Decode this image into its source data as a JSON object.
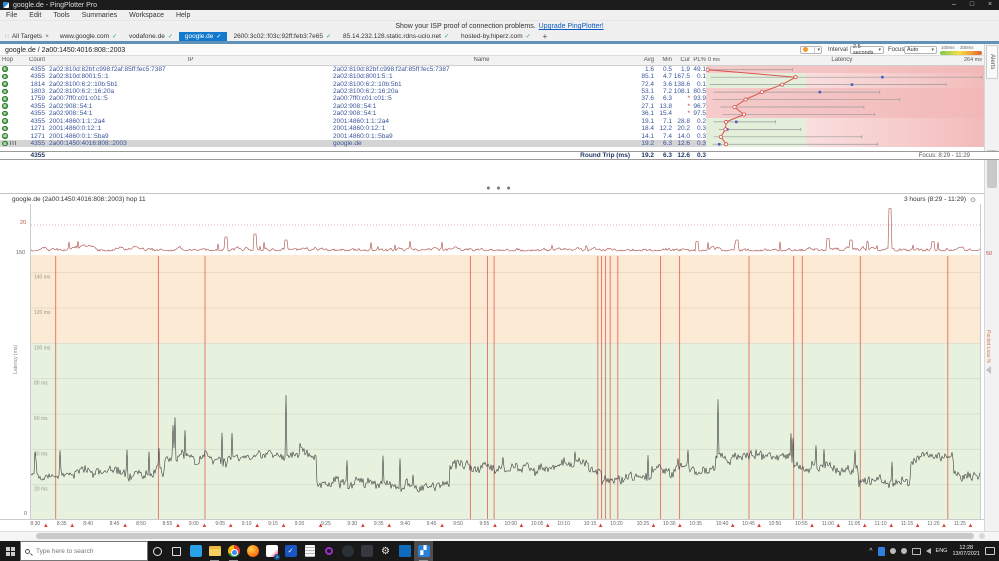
{
  "window": {
    "title": "google.de - PingPlotter Pro",
    "minimize": "–",
    "maximize": "□",
    "close": "×"
  },
  "menu": {
    "items": [
      "File",
      "Edit",
      "Tools",
      "Summaries",
      "Workspace",
      "Help"
    ]
  },
  "notice": {
    "text": "Show your ISP proof of connection problems.",
    "link": "Upgrade PingPlotter!"
  },
  "tabs": {
    "grip_glyph": "∷",
    "all_targets": "All Targets",
    "close_glyph": "×",
    "check_glyph": "✓",
    "add_label": "+",
    "items": [
      {
        "label": "www.google.com"
      },
      {
        "label": "vodafone.de"
      },
      {
        "label": "google.de",
        "active": true
      },
      {
        "label": "2600:3c02::f03c:92ff:feb3:7e65"
      },
      {
        "label": "85.14.232.128.static.rdns-uclo.net"
      },
      {
        "label": "hosted-by.hiperz.com"
      }
    ]
  },
  "target": {
    "title": "google.de / 2a00:1450:4016:808::2003"
  },
  "controls": {
    "interval_label": "Interval",
    "interval_value": "2.5 seconds",
    "focus_label": "Focus",
    "focus_value": "Auto",
    "scale_100": "100ms",
    "scale_200": "200ms",
    "caret": "▾",
    "alerts_tab": "Alerts"
  },
  "table": {
    "headers": {
      "hop": "Hop",
      "count": "Count",
      "ip": "IP",
      "name": "Name",
      "avg": "Avg",
      "min": "Min",
      "cur": "Cur",
      "pl": "PL%"
    },
    "latency_header": {
      "left": "0 ms",
      "center": "Latency",
      "right": "264 ms"
    },
    "rows": [
      {
        "hop": "1",
        "count": "4355",
        "ip": "2a02:810d:82bf:c998:f2af:85ff:fec5:7387",
        "name": "2a02:810d:82bf:c998:f2af:85ff:fec5:7387",
        "avg": "1.6",
        "min": "0.5",
        "cur": "1.9",
        "pl": "49.1",
        "loss": true,
        "avg_ms": 1.6,
        "min_ms": 0.5,
        "max_ms": 82,
        "cur_ms": 1.9
      },
      {
        "hop": "2",
        "count": "4355",
        "ip": "2a02:810d:8001:5::1",
        "name": "2a02:810d:8001:5::1",
        "avg": "85.1",
        "min": "4.7",
        "cur": "167.5",
        "pl": "0.1",
        "loss": false,
        "avg_ms": 85.1,
        "min_ms": 4.7,
        "max_ms": 262,
        "cur_ms": 167.5
      },
      {
        "hop": "3",
        "count": "1814",
        "ip": "2a02:8100:6:2::10b:5b1",
        "name": "2a02:8100:6:2::10b:5b1",
        "avg": "72.4",
        "min": "3.6",
        "cur": "138.6",
        "pl": "0.1",
        "loss": false,
        "avg_ms": 72.4,
        "min_ms": 3.6,
        "max_ms": 228,
        "cur_ms": 138.6
      },
      {
        "hop": "4",
        "count": "1803",
        "ip": "2a02:8100:6:2::16:20a",
        "name": "2a02:8100:6:2::16:20a",
        "avg": "53.1",
        "min": "7.2",
        "cur": "108.1",
        "pl": "80.5",
        "loss": true,
        "avg_ms": 53.1,
        "min_ms": 7.2,
        "max_ms": 165,
        "cur_ms": 108.1
      },
      {
        "hop": "5",
        "count": "1759",
        "ip": "2a00:7ff0:c01:c01::5",
        "name": "2a00:7ff0:c01:c01::5",
        "avg": "37.6",
        "min": "6.3",
        "cur": "*",
        "pl": "93.9",
        "loss": true,
        "cur_star": true,
        "avg_ms": 37.6,
        "min_ms": 6.3,
        "max_ms": 184,
        "cur_ms": null
      },
      {
        "hop": "6",
        "count": "4355",
        "ip": "2a02:908::54:1",
        "name": "2a02:908::54:1",
        "avg": "27.1",
        "min": "13.8",
        "cur": "*",
        "pl": "96.7",
        "loss": true,
        "cur_star": true,
        "avg_ms": 27.1,
        "min_ms": 13.8,
        "max_ms": 150,
        "cur_ms": null
      },
      {
        "hop": "7",
        "count": "4355",
        "ip": "2a02:908::54:1",
        "name": "2a02:908::54:1",
        "avg": "36.1",
        "min": "15.4",
        "cur": "*",
        "pl": "97.5",
        "loss": true,
        "cur_star": true,
        "avg_ms": 36.1,
        "min_ms": 15.4,
        "max_ms": 160,
        "cur_ms": null
      },
      {
        "hop": "8",
        "count": "4355",
        "ip": "2001:4860:1:1::2a4",
        "name": "2001:4860:1:1::2a4",
        "avg": "19.1",
        "min": "7.1",
        "cur": "28.8",
        "pl": "0.2",
        "loss": false,
        "avg_ms": 19.1,
        "min_ms": 7.1,
        "max_ms": 66,
        "cur_ms": 28.8
      },
      {
        "hop": "9",
        "count": "1271",
        "ip": "2001:4860:0:12::1",
        "name": "2001:4860:0:12::1",
        "avg": "18.4",
        "min": "12.2",
        "cur": "20.2",
        "pl": "0.3",
        "loss": false,
        "avg_ms": 18.4,
        "min_ms": 12.2,
        "max_ms": 90,
        "cur_ms": 20.2
      },
      {
        "hop": "10",
        "count": "1271",
        "ip": "2001:4860:0:1::5ba9",
        "name": "2001:4860:0:1::5ba9",
        "avg": "14.1",
        "min": "7.4",
        "cur": "14.0",
        "pl": "0.3",
        "loss": false,
        "avg_ms": 14.1,
        "min_ms": 7.4,
        "max_ms": 148,
        "cur_ms": 14.0
      },
      {
        "hop": "11",
        "count": "4355",
        "ip": "2a00:1450:4016:808::2003",
        "name": "google.de",
        "avg": "19.2",
        "min": "6.3",
        "cur": "12.6",
        "pl": "0.3",
        "loss": false,
        "selected": true,
        "graph_icon": true,
        "avg_ms": 19.2,
        "min_ms": 6.3,
        "max_ms": 163,
        "cur_ms": 12.6
      }
    ],
    "round_trip": {
      "count": "4355",
      "label": "Round Trip (ms)",
      "avg": "19.2",
      "min": "6.3",
      "cur": "12.6",
      "pl": "0.3"
    },
    "focus_text": "Focus: 8:29 - 11:29"
  },
  "timeline": {
    "title": "google.de (2a00:1450:4016:808::2003) hop 11",
    "range_label": "3 hours (8:29 - 11:29)",
    "range_icon": "⊙",
    "jitter_label": "Jitter (ms)",
    "jitter_axis_left": "20",
    "jitter_axis_right": "50",
    "latency_axis_label": "Latency (ms)",
    "packet_loss_label": "Packet Loss %",
    "y_top": "150",
    "y_bottom": "0",
    "gridline_labels": [
      "140 ms",
      "120 ms",
      "100 ms",
      "80 ms",
      "60 ms",
      "40 ms",
      "20 ms"
    ],
    "gridline_values": [
      140,
      120,
      100,
      80,
      60,
      40,
      20
    ],
    "warn_zone_above_ms": 100,
    "axis_max_ms": 150,
    "time_labels": [
      "8:30",
      "8:35",
      "8:40",
      "8:45",
      "8:50",
      "8:55",
      "9:00",
      "9:05",
      "9:10",
      "9:15",
      "9:20",
      "9:25",
      "9:30",
      "9:35",
      "9:40",
      "9:45",
      "9:50",
      "9:55",
      "10:00",
      "10:05",
      "10:10",
      "10:15",
      "10:20",
      "10:25",
      "10:30",
      "10:35",
      "10:40",
      "10:45",
      "10:50",
      "10:55",
      "11:00",
      "11:05",
      "11:10",
      "11:15",
      "11:20",
      "11:25"
    ],
    "time_start": "8:29",
    "time_span_minutes": 180,
    "alert_glyph": "▲",
    "alert_times": [
      "8:32",
      "8:37",
      "8:47",
      "8:57",
      "9:02",
      "9:07",
      "9:12",
      "9:17",
      "9:24",
      "9:32",
      "9:37",
      "9:47",
      "9:57",
      "10:02",
      "10:07",
      "10:17",
      "10:27",
      "10:32",
      "10:42",
      "10:47",
      "10:57",
      "11:02",
      "11:07",
      "11:12",
      "11:17",
      "11:22",
      "11:27"
    ],
    "loss_events": [
      0.026,
      0.134,
      0.183,
      0.462,
      0.48,
      0.487,
      0.596,
      0.6,
      0.604,
      0.609,
      0.617,
      0.662,
      0.682,
      0.755,
      0.802,
      0.811,
      0.872,
      0.964
    ],
    "latency_segments": [
      {
        "to": 0.14,
        "level": 26
      },
      {
        "to": 0.3,
        "level": 35
      },
      {
        "to": 0.44,
        "level": 21
      },
      {
        "to": 0.6,
        "level": 31
      },
      {
        "to": 0.655,
        "level": 24
      },
      {
        "to": 0.72,
        "level": 28
      },
      {
        "to": 0.8,
        "level": 36
      },
      {
        "to": 0.87,
        "level": 30
      },
      {
        "to": 0.925,
        "level": 22
      },
      {
        "to": 0.97,
        "level": 34
      },
      {
        "to": 1.01,
        "level": 26
      }
    ],
    "jitter_spikes": [
      {
        "f": 0.205,
        "v": 11
      },
      {
        "f": 0.236,
        "v": 13
      },
      {
        "f": 0.268,
        "v": 9
      },
      {
        "f": 0.7,
        "v": 8
      },
      {
        "f": 0.742,
        "v": 9
      },
      {
        "f": 0.838,
        "v": 10
      },
      {
        "f": 0.862,
        "v": 9
      },
      {
        "f": 0.903,
        "v": 30
      },
      {
        "f": 0.948,
        "v": 8
      }
    ]
  },
  "colors": {
    "tab_active": "#1279cc",
    "loss_line": "#e2574b",
    "safe_zone": "#e7f2de",
    "warn_zone": "#fcebd4",
    "trace": "#3a3a3a",
    "jitter_trace": "#a84b44",
    "avg_line": "#d9534f",
    "cur_marker": "#4a5fc0"
  },
  "taskbar": {
    "search_placeholder": "Type here to search",
    "icons": [
      {
        "name": "cortana-icon",
        "kind": "cortana"
      },
      {
        "name": "task-view-icon",
        "kind": "taskview"
      },
      {
        "name": "vscode-icon",
        "kind": "vscode"
      },
      {
        "name": "explorer-icon",
        "kind": "explorer",
        "open": true
      },
      {
        "name": "chrome-icon",
        "kind": "chrome",
        "open": true
      },
      {
        "name": "firefox-icon",
        "kind": "firefox"
      },
      {
        "name": "paint3d-icon",
        "kind": "paint",
        "badge": "1"
      },
      {
        "name": "todo-icon",
        "kind": "todo",
        "glyph": "✓"
      },
      {
        "name": "sticky-notes-icon",
        "kind": "notes"
      },
      {
        "name": "opera-icon",
        "kind": "opera"
      },
      {
        "name": "github-desktop-icon",
        "kind": "github"
      },
      {
        "name": "discord-icon",
        "kind": "discord"
      },
      {
        "name": "settings-icon",
        "kind": "gear",
        "glyph": "⚙"
      },
      {
        "name": "store-icon",
        "kind": "store"
      },
      {
        "name": "pingplotter-icon",
        "kind": "pp",
        "glyph": "▞",
        "active": true,
        "open": true
      }
    ],
    "tray": {
      "lang": "ENG",
      "time": "12:28",
      "date": "13/07/2021"
    }
  }
}
